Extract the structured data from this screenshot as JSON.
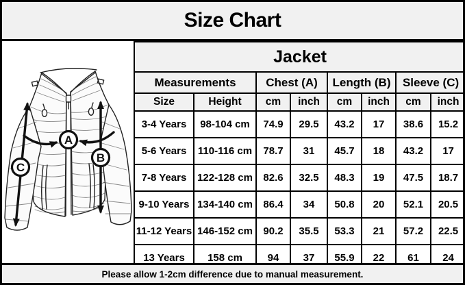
{
  "title": "Size Chart",
  "footer": "Please allow 1-2cm difference due to manual measurement.",
  "diagram": {
    "description": "puffer-jacket line drawing with measurement arrows",
    "measure_labels": [
      "A",
      "B",
      "C"
    ]
  },
  "chart_data": {
    "type": "table",
    "title": "Jacket",
    "group_headers": [
      {
        "label": "Measurements",
        "span": 2
      },
      {
        "label": "Chest (A)",
        "span": 2
      },
      {
        "label": "Length (B)",
        "span": 2
      },
      {
        "label": "Sleeve (C)",
        "span": 2
      }
    ],
    "sub_headers": [
      "Size",
      "Height",
      "cm",
      "inch",
      "cm",
      "inch",
      "cm",
      "inch"
    ],
    "rows": [
      [
        "3-4 Years",
        "98-104 cm",
        "74.9",
        "29.5",
        "43.2",
        "17",
        "38.6",
        "15.2"
      ],
      [
        "5-6 Years",
        "110-116 cm",
        "78.7",
        "31",
        "45.7",
        "18",
        "43.2",
        "17"
      ],
      [
        "7-8 Years",
        "122-128 cm",
        "82.6",
        "32.5",
        "48.3",
        "19",
        "47.5",
        "18.7"
      ],
      [
        "9-10 Years",
        "134-140 cm",
        "86.4",
        "34",
        "50.8",
        "20",
        "52.1",
        "20.5"
      ],
      [
        "11-12 Years",
        "146-152 cm",
        "90.2",
        "35.5",
        "53.3",
        "21",
        "57.2",
        "22.5"
      ],
      [
        "13 Years",
        "158 cm",
        "94",
        "37",
        "55.9",
        "22",
        "61",
        "24"
      ]
    ]
  },
  "colors": {
    "band_bg": "#f1f1f1",
    "cell_bg": "#ffffff",
    "border": "#000000",
    "text": "#000000"
  }
}
